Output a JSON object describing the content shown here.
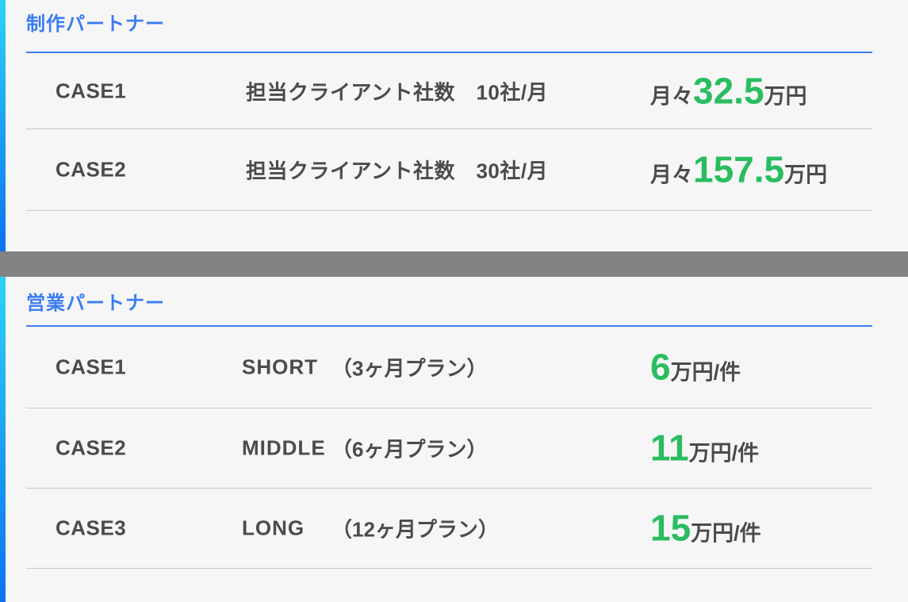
{
  "colors": {
    "accent_blue": "#3a7cf3",
    "price_green": "#29bd5f",
    "text_dark": "#4b4b4b",
    "divider_gray": "#838383",
    "bar_gradient_top": "#2bd4f6",
    "bar_gradient_bottom": "#0d71f0",
    "row_border": "#c9c9c9",
    "background": "#f6f6f7"
  },
  "sections": [
    {
      "title": "制作パートナー",
      "rows": [
        {
          "case": "CASE1",
          "spec": "担当クライアント社数　10社/月",
          "price_prefix": "月々",
          "price_value": "32.5",
          "price_suffix": "万円"
        },
        {
          "case": "CASE2",
          "spec": "担当クライアント社数　30社/月",
          "price_prefix": "月々",
          "price_value": "157.5",
          "price_suffix": "万円"
        }
      ]
    },
    {
      "title": "営業パートナー",
      "rows": [
        {
          "case": "CASE1",
          "plan": "SHORT",
          "duration": "（3ヶ月プラン）",
          "price_value": "6",
          "price_suffix": "万円/件"
        },
        {
          "case": "CASE2",
          "plan": "MIDDLE",
          "duration": "（6ヶ月プラン）",
          "price_value": "11",
          "price_suffix": "万円/件"
        },
        {
          "case": "CASE3",
          "plan": "LONG",
          "duration": "（12ヶ月プラン）",
          "price_value": "15",
          "price_suffix": "万円/件"
        }
      ]
    }
  ]
}
